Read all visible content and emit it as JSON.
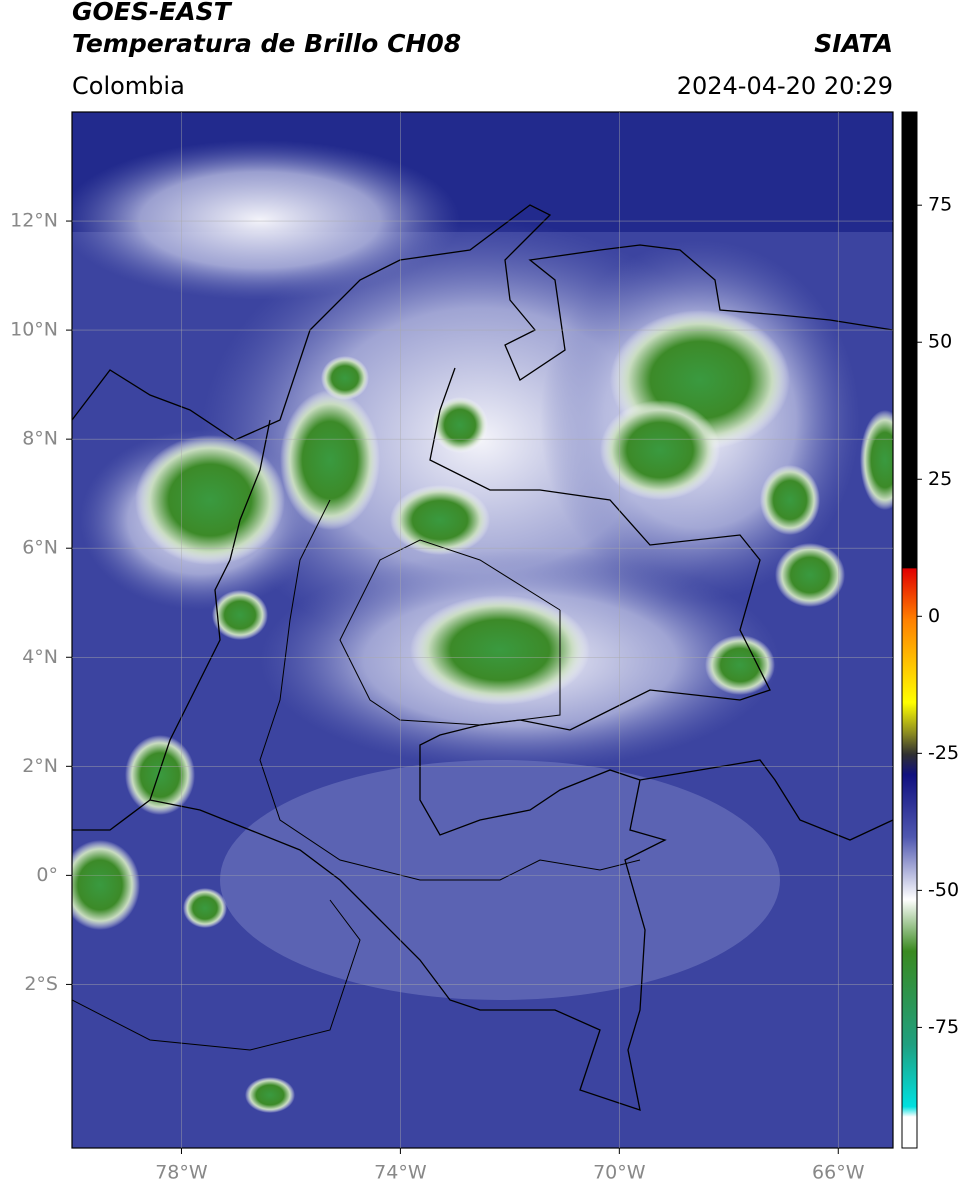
{
  "header": {
    "satellite": "GOES-EAST",
    "product": "Temperatura de Brillo CH08",
    "region": "Colombia",
    "source": "SIATA",
    "datetime": "2024-04-20 20:29"
  },
  "map": {
    "lon_range": [
      -80,
      -65
    ],
    "lat_range": [
      -5,
      14
    ],
    "grid": true,
    "lat_ticks": [
      {
        "value": 12,
        "label": "12°N"
      },
      {
        "value": 10,
        "label": "10°N"
      },
      {
        "value": 8,
        "label": "8°N"
      },
      {
        "value": 6,
        "label": "6°N"
      },
      {
        "value": 4,
        "label": "4°N"
      },
      {
        "value": 2,
        "label": "2°N"
      },
      {
        "value": 0,
        "label": "0°"
      },
      {
        "value": -2,
        "label": "2°S"
      }
    ],
    "lon_ticks": [
      {
        "value": -78,
        "label": "78°W"
      },
      {
        "value": -74,
        "label": "74°W"
      },
      {
        "value": -70,
        "label": "70°W"
      },
      {
        "value": -66,
        "label": "66°W"
      }
    ]
  },
  "colorbar": {
    "range": [
      -97,
      92
    ],
    "ticks": [
      75,
      50,
      25,
      0,
      -25,
      -50,
      -75
    ]
  }
}
